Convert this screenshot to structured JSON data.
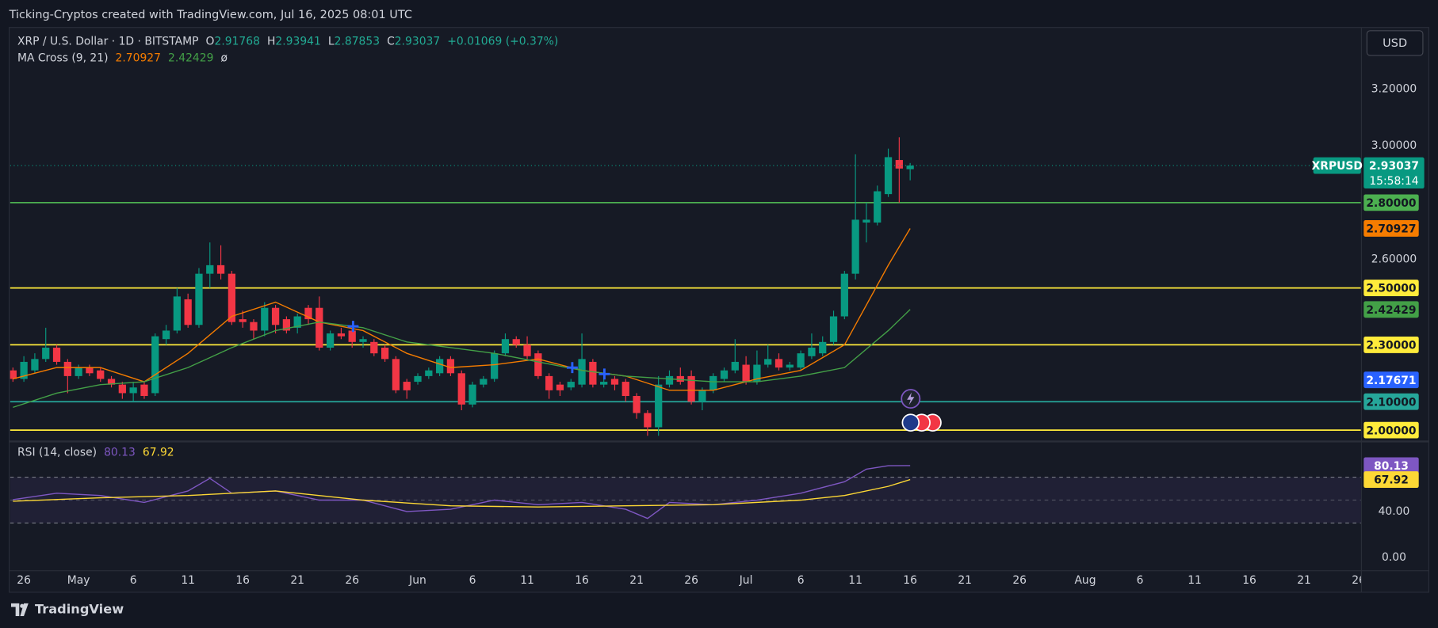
{
  "header": "Ticking-Cryptos created with TradingView.com, Jul 16, 2025 08:01 UTC",
  "footer": "TradingView",
  "currency_button": "USD",
  "chart_data": [
    {
      "type": "candlestick",
      "title": "XRP / U.S. Dollar · 1D · BITSTAMP",
      "ohlc_labels": [
        "O",
        "H",
        "L",
        "C"
      ],
      "change": "+0.01069 (+0.37%)",
      "symbol": "XRPUSD",
      "countdown": "15:58:14",
      "up_color": "#089981",
      "down_color": "#f23645",
      "x": [
        -1,
        0,
        1,
        2,
        3,
        4,
        5,
        6,
        7,
        8,
        9,
        10,
        11,
        12,
        13,
        14,
        15,
        16,
        17,
        18,
        19,
        20,
        21,
        22,
        23,
        24,
        25,
        26,
        27,
        28,
        29,
        30,
        31,
        32,
        33,
        34,
        35,
        36,
        37,
        38,
        39,
        40,
        41,
        42,
        43,
        44,
        45,
        46,
        47,
        48,
        49,
        50,
        51,
        52,
        53,
        54,
        55,
        56,
        57,
        58,
        59,
        60,
        61,
        62,
        63,
        64,
        65,
        66,
        67,
        68,
        69,
        70,
        71,
        72,
        73,
        74,
        75,
        76,
        77,
        78,
        79,
        80,
        81
      ],
      "open": [
        2.21,
        2.18,
        2.21,
        2.25,
        2.29,
        2.24,
        2.19,
        2.22,
        2.21,
        2.18,
        2.16,
        2.13,
        2.16,
        2.13,
        2.32,
        2.35,
        2.46,
        2.37,
        2.55,
        2.58,
        2.55,
        2.39,
        2.38,
        2.35,
        2.43,
        2.39,
        2.36,
        2.43,
        2.43,
        2.29,
        2.34,
        2.35,
        2.31,
        2.31,
        2.29,
        2.25,
        2.17,
        2.17,
        2.19,
        2.2,
        2.25,
        2.2,
        2.09,
        2.16,
        2.18,
        2.27,
        2.32,
        2.3,
        2.27,
        2.19,
        2.16,
        2.15,
        2.16,
        2.24,
        2.16,
        2.18,
        2.17,
        2.12,
        2.06,
        2.01,
        2.16,
        2.19,
        2.19,
        2.1,
        2.14,
        2.18,
        2.21,
        2.23,
        2.17,
        2.23,
        2.25,
        2.22,
        2.22,
        2.26,
        2.27,
        2.31,
        2.4,
        2.55,
        2.73,
        2.73,
        2.83,
        2.95,
        2.91768
      ],
      "high": [
        2.22,
        2.26,
        2.27,
        2.36,
        2.3,
        2.25,
        2.23,
        2.23,
        2.22,
        2.19,
        2.17,
        2.17,
        2.17,
        2.34,
        2.37,
        2.5,
        2.48,
        2.57,
        2.66,
        2.65,
        2.56,
        2.42,
        2.39,
        2.45,
        2.44,
        2.4,
        2.41,
        2.44,
        2.47,
        2.35,
        2.36,
        2.36,
        2.33,
        2.32,
        2.3,
        2.26,
        2.18,
        2.2,
        2.22,
        2.26,
        2.26,
        2.21,
        2.17,
        2.19,
        2.28,
        2.34,
        2.33,
        2.33,
        2.28,
        2.2,
        2.17,
        2.18,
        2.34,
        2.25,
        2.19,
        2.19,
        2.18,
        2.13,
        2.07,
        2.19,
        2.21,
        2.22,
        2.21,
        2.15,
        2.2,
        2.22,
        2.32,
        2.26,
        2.28,
        2.3,
        2.27,
        2.24,
        2.28,
        2.34,
        2.33,
        2.42,
        2.56,
        2.97,
        2.8,
        2.86,
        2.99,
        3.03,
        2.93941
      ],
      "low": [
        2.17,
        2.17,
        2.2,
        2.24,
        2.23,
        2.13,
        2.18,
        2.19,
        2.17,
        2.15,
        2.11,
        2.1,
        2.11,
        2.12,
        2.3,
        2.34,
        2.36,
        2.36,
        2.5,
        2.53,
        2.37,
        2.36,
        2.32,
        2.33,
        2.34,
        2.34,
        2.34,
        2.37,
        2.28,
        2.28,
        2.32,
        2.29,
        2.29,
        2.26,
        2.24,
        2.13,
        2.11,
        2.16,
        2.18,
        2.19,
        2.19,
        2.07,
        2.08,
        2.15,
        2.17,
        2.26,
        2.29,
        2.25,
        2.18,
        2.11,
        2.12,
        2.14,
        2.15,
        2.15,
        2.15,
        2.14,
        2.1,
        2.04,
        1.98,
        1.98,
        2.15,
        2.16,
        2.09,
        2.07,
        2.13,
        2.17,
        2.2,
        2.16,
        2.16,
        2.22,
        2.21,
        2.21,
        2.21,
        2.25,
        2.26,
        2.3,
        2.39,
        2.53,
        2.66,
        2.72,
        2.82,
        2.8,
        2.87853
      ],
      "close": [
        2.18,
        2.24,
        2.25,
        2.29,
        2.24,
        2.19,
        2.22,
        2.2,
        2.18,
        2.16,
        2.13,
        2.15,
        2.12,
        2.33,
        2.35,
        2.47,
        2.37,
        2.55,
        2.58,
        2.55,
        2.38,
        2.38,
        2.35,
        2.43,
        2.37,
        2.35,
        2.4,
        2.39,
        2.29,
        2.34,
        2.33,
        2.31,
        2.32,
        2.27,
        2.25,
        2.14,
        2.14,
        2.19,
        2.21,
        2.25,
        2.2,
        2.09,
        2.16,
        2.18,
        2.27,
        2.32,
        2.3,
        2.26,
        2.19,
        2.14,
        2.14,
        2.17,
        2.25,
        2.16,
        2.17,
        2.16,
        2.12,
        2.06,
        2.01,
        2.16,
        2.19,
        2.17,
        2.1,
        2.14,
        2.19,
        2.21,
        2.24,
        2.17,
        2.23,
        2.25,
        2.22,
        2.23,
        2.27,
        2.29,
        2.31,
        2.4,
        2.55,
        2.74,
        2.74,
        2.84,
        2.96,
        2.92,
        2.93037
      ],
      "ma_title": "MA Cross (9, 21)",
      "ma_symbol": "ø",
      "ma": [
        {
          "color": "#f57c00",
          "x": [
            -1,
            3,
            7,
            11,
            15,
            19,
            23,
            27,
            31,
            35,
            39,
            43,
            47,
            51,
            55,
            59,
            63,
            67,
            71,
            75,
            79,
            81
          ],
          "values": [
            2.18,
            2.22,
            2.22,
            2.17,
            2.27,
            2.4,
            2.45,
            2.38,
            2.35,
            2.27,
            2.22,
            2.23,
            2.25,
            2.21,
            2.19,
            2.14,
            2.14,
            2.18,
            2.21,
            2.3,
            2.58,
            2.70927
          ]
        },
        {
          "color": "#43a047",
          "x": [
            -1,
            3,
            7,
            11,
            15,
            19,
            23,
            27,
            31,
            35,
            39,
            43,
            47,
            51,
            55,
            59,
            63,
            67,
            71,
            75,
            79,
            81
          ],
          "values": [
            2.08,
            2.13,
            2.16,
            2.17,
            2.22,
            2.29,
            2.35,
            2.38,
            2.36,
            2.31,
            2.29,
            2.27,
            2.24,
            2.21,
            2.19,
            2.18,
            2.17,
            2.17,
            2.19,
            2.22,
            2.35,
            2.42429
          ]
        }
      ],
      "levels": [
        {
          "value": 2.8,
          "label": "2.80000",
          "color": "#4caf50"
        },
        {
          "value": 2.5,
          "label": "2.50000",
          "color": "#ffeb3b"
        },
        {
          "value": 2.3,
          "label": "2.30000",
          "color": "#ffeb3b"
        },
        {
          "value": 2.1,
          "label": "2.10000",
          "color": "#26a69a"
        },
        {
          "value": 2.0,
          "label": "2.00000",
          "color": "#ffeb3b"
        }
      ],
      "marker_price": 2.17671,
      "marker_color": "#2962ff",
      "xlim": [
        -1.26,
        122.2
      ],
      "xticks": [
        {
          "value": 0,
          "label": "26"
        },
        {
          "value": 5,
          "label": "May"
        },
        {
          "value": 10,
          "label": "6"
        },
        {
          "value": 15,
          "label": "11"
        },
        {
          "value": 20,
          "label": "16"
        },
        {
          "value": 25,
          "label": "21"
        },
        {
          "value": 30,
          "label": "26"
        },
        {
          "value": 36,
          "label": "Jun"
        },
        {
          "value": 41,
          "label": "6"
        },
        {
          "value": 46,
          "label": "11"
        },
        {
          "value": 51,
          "label": "16"
        },
        {
          "value": 56,
          "label": "21"
        },
        {
          "value": 61,
          "label": "26"
        },
        {
          "value": 66,
          "label": "Jul"
        },
        {
          "value": 71,
          "label": "6"
        },
        {
          "value": 76,
          "label": "11"
        },
        {
          "value": 81,
          "label": "16"
        },
        {
          "value": 86,
          "label": "21"
        },
        {
          "value": 91,
          "label": "26"
        },
        {
          "value": 97,
          "label": "Aug"
        },
        {
          "value": 102,
          "label": "6"
        },
        {
          "value": 107,
          "label": "11"
        },
        {
          "value": 112,
          "label": "16"
        },
        {
          "value": 117,
          "label": "21"
        },
        {
          "value": 122,
          "label": "26"
        }
      ],
      "ylim": [
        1.965,
        3.416
      ],
      "yticks": [
        {
          "value": 3.2,
          "label": "3.20000"
        },
        {
          "value": 3.0,
          "label": "3.00000"
        },
        {
          "value": 2.6,
          "label": "2.60000"
        }
      ],
      "grid": false
    },
    {
      "type": "line",
      "title": "RSI (14, close)",
      "series": [
        {
          "color": "#7e57c2",
          "x": [
            -1,
            3,
            7,
            11,
            15,
            17,
            19,
            23,
            27,
            31,
            35,
            39,
            43,
            47,
            51,
            55,
            57,
            59,
            63,
            67,
            71,
            75,
            77,
            79,
            81
          ],
          "values": [
            50.4,
            56,
            54,
            48,
            58,
            69,
            56,
            58,
            50,
            50,
            40,
            42,
            50,
            46,
            48,
            42,
            34,
            48,
            46,
            50,
            56,
            66,
            77,
            80,
            80.13
          ]
        },
        {
          "color": "#fdd835",
          "x": [
            -1,
            7,
            15,
            23,
            31,
            39,
            47,
            55,
            63,
            71,
            75,
            79,
            81
          ],
          "values": [
            49,
            52,
            54,
            58,
            50,
            45,
            44,
            45,
            46,
            50,
            54,
            62,
            67.92
          ]
        }
      ],
      "bands": [
        30,
        70
      ],
      "midline": 50,
      "ylim": [
        -11.2,
        100.8
      ],
      "yticks": [
        {
          "value": 40,
          "label": "40.00"
        },
        {
          "value": 0,
          "label": "0.00"
        }
      ],
      "grid": false
    }
  ]
}
